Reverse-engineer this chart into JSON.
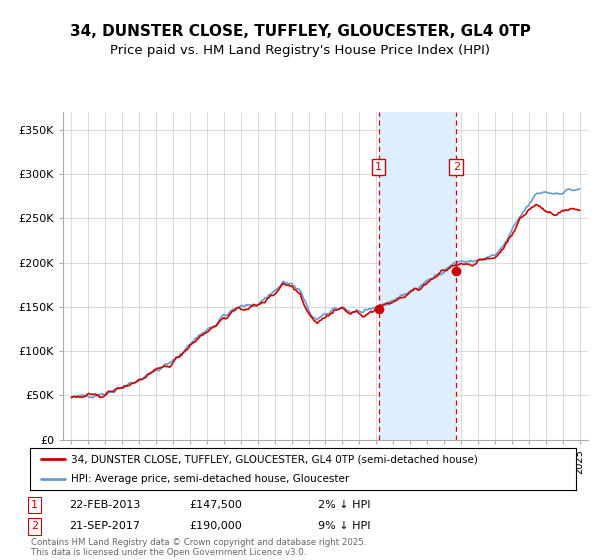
{
  "title": "34, DUNSTER CLOSE, TUFFLEY, GLOUCESTER, GL4 0TP",
  "subtitle": "Price paid vs. HM Land Registry's House Price Index (HPI)",
  "legend_label_red": "34, DUNSTER CLOSE, TUFFLEY, GLOUCESTER, GL4 0TP (semi-detached house)",
  "legend_label_blue": "HPI: Average price, semi-detached house, Gloucester",
  "annotation1_date": "22-FEB-2013",
  "annotation1_price": "£147,500",
  "annotation1_note": "2% ↓ HPI",
  "annotation2_date": "21-SEP-2017",
  "annotation2_price": "£190,000",
  "annotation2_note": "9% ↓ HPI",
  "footer": "Contains HM Land Registry data © Crown copyright and database right 2025.\nThis data is licensed under the Open Government Licence v3.0.",
  "sale1_x": 2013.13,
  "sale1_y": 147500,
  "sale2_x": 2017.72,
  "sale2_y": 190000,
  "vline1_x": 2013.13,
  "vline2_x": 2017.72,
  "shade_x1": 2013.13,
  "shade_x2": 2017.72,
  "ylim": [
    0,
    370000
  ],
  "xlim": [
    1994.5,
    2025.5
  ],
  "red_color": "#cc0000",
  "blue_color": "#6699cc",
  "shade_color": "#ddeeff",
  "bg_color": "#ffffff",
  "grid_color": "#cccccc",
  "title_fontsize": 11,
  "subtitle_fontsize": 9.5,
  "yticks": [
    0,
    50000,
    100000,
    150000,
    200000,
    250000,
    300000,
    350000
  ],
  "ytick_labels": [
    "£0",
    "£50K",
    "£100K",
    "£150K",
    "£200K",
    "£250K",
    "£300K",
    "£350K"
  ],
  "anchor_years": [
    1995.0,
    1996.0,
    1997.0,
    1998.0,
    1999.0,
    2000.0,
    2001.0,
    2002.0,
    2003.0,
    2003.5,
    2004.0,
    2005.0,
    2006.0,
    2007.0,
    2007.5,
    2008.0,
    2008.5,
    2009.0,
    2009.5,
    2010.0,
    2010.5,
    2011.0,
    2011.5,
    2012.0,
    2012.5,
    2013.0,
    2013.5,
    2014.0,
    2014.5,
    2015.0,
    2015.5,
    2016.0,
    2016.5,
    2017.0,
    2017.5,
    2018.0,
    2018.5,
    2019.0,
    2019.5,
    2020.0,
    2020.5,
    2021.0,
    2021.5,
    2022.0,
    2022.5,
    2023.0,
    2023.5,
    2024.0,
    2024.5,
    2025.0
  ],
  "anchor_blue": [
    47000,
    50000,
    52000,
    60000,
    68000,
    78000,
    88000,
    108000,
    125000,
    130000,
    140000,
    150000,
    153000,
    168000,
    178000,
    175000,
    168000,
    145000,
    135000,
    140000,
    148000,
    150000,
    144000,
    145000,
    143000,
    150000,
    153000,
    158000,
    162000,
    168000,
    172000,
    178000,
    185000,
    192000,
    198000,
    202000,
    200000,
    203000,
    205000,
    208000,
    218000,
    235000,
    252000,
    265000,
    278000,
    280000,
    278000,
    280000,
    282000,
    283000
  ],
  "anchor_red": [
    47000,
    49000,
    51000,
    59000,
    67000,
    77000,
    87000,
    107000,
    123000,
    128000,
    138000,
    148000,
    151000,
    165000,
    177000,
    173000,
    165000,
    143000,
    133000,
    138000,
    146000,
    148000,
    142000,
    143000,
    141000,
    148000,
    151000,
    156000,
    160000,
    166000,
    170000,
    176000,
    183000,
    190000,
    196000,
    200000,
    198000,
    201000,
    203000,
    206000,
    216000,
    233000,
    248000,
    260000,
    265000,
    258000,
    255000,
    258000,
    260000,
    260000
  ]
}
